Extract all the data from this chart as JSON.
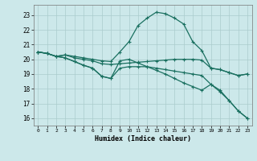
{
  "xlabel": "Humidex (Indice chaleur)",
  "bg_color": "#cce8ea",
  "grid_color": "#aacccc",
  "line_color": "#1a7060",
  "xlim": [
    -0.5,
    23.5
  ],
  "ylim": [
    15.5,
    23.7
  ],
  "yticks": [
    16,
    17,
    18,
    19,
    20,
    21,
    22,
    23
  ],
  "xticks": [
    0,
    1,
    2,
    3,
    4,
    5,
    6,
    7,
    8,
    9,
    10,
    11,
    12,
    13,
    14,
    15,
    16,
    17,
    18,
    19,
    20,
    21,
    22,
    23
  ],
  "line_hump_x": [
    0,
    1,
    2,
    3,
    4,
    5,
    6,
    7,
    8,
    9,
    10,
    11,
    12,
    13,
    14,
    15,
    16,
    17,
    18,
    19,
    20,
    21,
    22,
    23
  ],
  "line_hump_y": [
    20.5,
    20.4,
    20.2,
    20.3,
    20.2,
    20.1,
    20.0,
    19.9,
    19.85,
    20.5,
    21.2,
    22.3,
    22.8,
    23.2,
    23.1,
    22.8,
    22.4,
    21.2,
    20.6,
    19.4,
    19.3,
    19.1,
    18.9,
    19.0
  ],
  "line_flat1_x": [
    0,
    1,
    2,
    3,
    4,
    5,
    6,
    7,
    8,
    9,
    10,
    11,
    12,
    13,
    14,
    15,
    16,
    17,
    18,
    19,
    20,
    21,
    22,
    23
  ],
  "line_flat1_y": [
    20.5,
    20.4,
    20.2,
    20.3,
    20.1,
    20.0,
    19.9,
    19.7,
    19.65,
    19.7,
    19.75,
    19.8,
    19.85,
    19.9,
    19.95,
    20.0,
    20.0,
    20.0,
    19.95,
    19.4,
    19.3,
    19.1,
    18.9,
    19.0
  ],
  "line_diag_x": [
    0,
    1,
    2,
    3,
    4,
    5,
    6,
    7,
    8,
    9,
    10,
    11,
    12,
    13,
    14,
    15,
    16,
    17,
    18,
    19,
    20,
    21,
    22,
    23
  ],
  "line_diag_y": [
    20.5,
    20.4,
    20.2,
    20.1,
    19.85,
    19.6,
    19.4,
    18.85,
    18.7,
    19.9,
    20.0,
    19.75,
    19.5,
    19.25,
    19.0,
    18.7,
    18.4,
    18.15,
    17.9,
    18.3,
    17.9,
    17.2,
    16.5,
    16.0
  ],
  "line_steep_x": [
    0,
    1,
    2,
    3,
    4,
    5,
    6,
    7,
    8,
    9,
    10,
    11,
    12,
    13,
    14,
    15,
    16,
    17,
    18,
    19,
    20,
    21,
    22,
    23
  ],
  "line_steep_y": [
    20.5,
    20.4,
    20.2,
    20.1,
    19.85,
    19.6,
    19.4,
    18.85,
    18.7,
    19.4,
    19.5,
    19.5,
    19.5,
    19.4,
    19.3,
    19.2,
    19.1,
    19.0,
    18.9,
    18.3,
    17.8,
    17.2,
    16.5,
    16.0
  ]
}
